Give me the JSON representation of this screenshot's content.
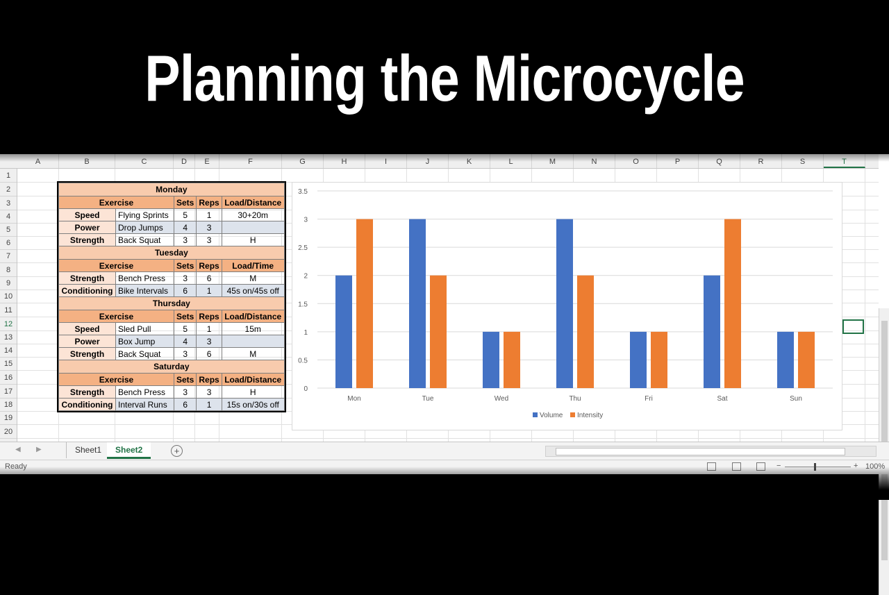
{
  "title": "Planning the Microcycle",
  "columns": [
    "A",
    "B",
    "C",
    "D",
    "E",
    "F",
    "G",
    "H",
    "I",
    "J",
    "K",
    "L",
    "M",
    "N",
    "O",
    "P",
    "Q",
    "R",
    "S",
    "T"
  ],
  "rows": [
    "1",
    "2",
    "3",
    "4",
    "5",
    "6",
    "7",
    "8",
    "9",
    "10",
    "11",
    "12",
    "13",
    "14",
    "15",
    "16",
    "17",
    "18",
    "19",
    "20"
  ],
  "selected_column": "T",
  "selected_row": "12",
  "schedule": {
    "days": [
      {
        "day": "Monday",
        "header": [
          "Exercise",
          "Sets",
          "Reps",
          "Load/Distance"
        ],
        "rows": [
          {
            "category": "Speed",
            "exercise": "Flying Sprints",
            "sets": "5",
            "reps": "1",
            "load": "30+20m"
          },
          {
            "category": "Power",
            "exercise": "Drop Jumps",
            "sets": "4",
            "reps": "3",
            "load": ""
          },
          {
            "category": "Strength",
            "exercise": "Back Squat",
            "sets": "3",
            "reps": "3",
            "load": "H"
          }
        ]
      },
      {
        "day": "Tuesday",
        "header": [
          "Exercise",
          "Sets",
          "Reps",
          "Load/Time"
        ],
        "rows": [
          {
            "category": "Strength",
            "exercise": "Bench Press",
            "sets": "3",
            "reps": "6",
            "load": "M"
          },
          {
            "category": "Conditioning",
            "exercise": "Bike Intervals",
            "sets": "6",
            "reps": "1",
            "load": "45s on/45s off"
          }
        ]
      },
      {
        "day": "Thursday",
        "header": [
          "Exercise",
          "Sets",
          "Reps",
          "Load/Distance"
        ],
        "rows": [
          {
            "category": "Speed",
            "exercise": "Sled Pull",
            "sets": "5",
            "reps": "1",
            "load": "15m"
          },
          {
            "category": "Power",
            "exercise": "Box Jump",
            "sets": "4",
            "reps": "3",
            "load": ""
          },
          {
            "category": "Strength",
            "exercise": "Back Squat",
            "sets": "3",
            "reps": "6",
            "load": "M"
          }
        ]
      },
      {
        "day": "Saturday",
        "header": [
          "Exercise",
          "Sets",
          "Reps",
          "Load/Distance"
        ],
        "rows": [
          {
            "category": "Strength",
            "exercise": "Bench Press",
            "sets": "3",
            "reps": "3",
            "load": "H"
          },
          {
            "category": "Conditioning",
            "exercise": "Interval Runs",
            "sets": "6",
            "reps": "1",
            "load": "15s on/30s off"
          }
        ]
      }
    ]
  },
  "chart_data": {
    "type": "bar",
    "title": "",
    "xlabel": "",
    "ylabel": "",
    "categories": [
      "Mon",
      "Tue",
      "Wed",
      "Thu",
      "Fri",
      "Sat",
      "Sun"
    ],
    "series": [
      {
        "name": "Volume",
        "color": "#4472c4",
        "values": [
          2,
          3,
          1,
          3,
          1,
          2,
          1
        ]
      },
      {
        "name": "Intensity",
        "color": "#ed7d31",
        "values": [
          3,
          2,
          1,
          2,
          1,
          3,
          1
        ]
      }
    ],
    "ylim": [
      0,
      3.5
    ],
    "yticks": [
      "0",
      "0.5",
      "1",
      "1.5",
      "2",
      "2.5",
      "3",
      "3.5"
    ],
    "grid": true,
    "legend": "bottom"
  },
  "tabs": {
    "sheet1": "Sheet1",
    "sheet2": "Sheet2",
    "add": "+",
    "prev": "◀",
    "next": "▶"
  },
  "status": {
    "ready": "Ready",
    "zoom": "100%",
    "zoom_minus": "−",
    "zoom_plus": "+"
  },
  "colors": {
    "accent": "#217346",
    "day_fill": "#f8cbad",
    "header_fill": "#f4b183",
    "category_fill": "#fce4d6",
    "alt_fill": "#dde3ec"
  }
}
